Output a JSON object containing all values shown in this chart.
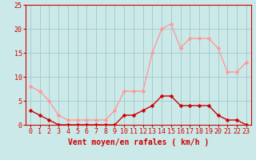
{
  "hours": [
    0,
    1,
    2,
    3,
    4,
    5,
    6,
    7,
    8,
    9,
    10,
    11,
    12,
    13,
    14,
    15,
    16,
    17,
    18,
    19,
    20,
    21,
    22,
    23
  ],
  "wind_avg": [
    3,
    2,
    1,
    0,
    0,
    0,
    0,
    0,
    0,
    0,
    2,
    2,
    3,
    4,
    6,
    6,
    4,
    4,
    4,
    4,
    2,
    1,
    1,
    0
  ],
  "wind_gust": [
    8,
    7,
    5,
    2,
    1,
    1,
    1,
    1,
    1,
    3,
    7,
    7,
    7,
    15,
    20,
    21,
    16,
    18,
    18,
    18,
    16,
    11,
    11,
    13
  ],
  "bg_color": "#cce9e9",
  "grid_color": "#a0c8c8",
  "avg_color": "#cc0000",
  "gust_color": "#ff9999",
  "xlabel": "Vent moyen/en rafales ( km/h )",
  "xlabel_color": "#cc0000",
  "xlabel_fontsize": 7,
  "tick_color": "#cc0000",
  "tick_fontsize": 6,
  "ylim": [
    0,
    25
  ],
  "yticks": [
    0,
    5,
    10,
    15,
    20,
    25
  ],
  "marker_size": 2.5,
  "linewidth": 1.0
}
